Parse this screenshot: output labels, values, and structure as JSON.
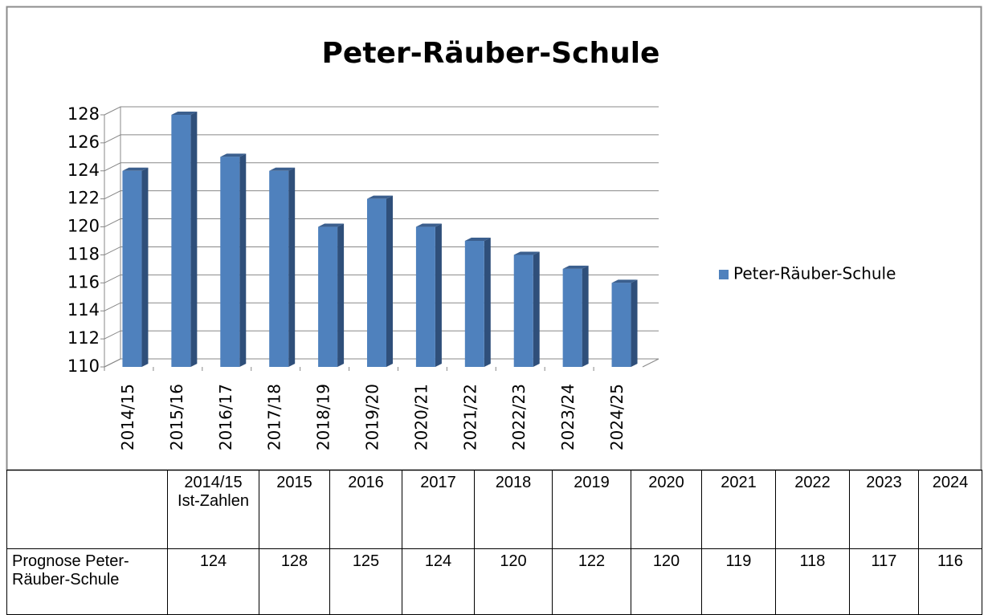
{
  "chart_data": {
    "type": "bar",
    "title": "Peter-Räuber-Schule",
    "categories": [
      "2014/15",
      "2015/16",
      "2016/17",
      "2017/18",
      "2018/19",
      "2019/20",
      "2020/21",
      "2021/22",
      "2022/23",
      "2023/24",
      "2024/25"
    ],
    "series": [
      {
        "name": "Peter-Räuber-Schule",
        "color": "#4f81bd",
        "values": [
          124,
          128,
          125,
          124,
          120,
          122,
          120,
          119,
          118,
          117,
          116
        ]
      }
    ],
    "ylim": [
      110,
      128
    ],
    "yticks": [
      110,
      112,
      114,
      116,
      118,
      120,
      122,
      124,
      126,
      128
    ],
    "grid": true,
    "legend": "right"
  },
  "table": {
    "columns": [
      "2014/15 Ist-Zahlen",
      "2015",
      "2016",
      "2017",
      "2018",
      "2019",
      "2020",
      "2021",
      "2022",
      "2023",
      "2024"
    ],
    "rows": [
      {
        "label": "Prognose Peter-Räuber-Schule",
        "values": [
          124,
          128,
          125,
          124,
          120,
          122,
          120,
          119,
          118,
          117,
          116
        ]
      }
    ]
  }
}
